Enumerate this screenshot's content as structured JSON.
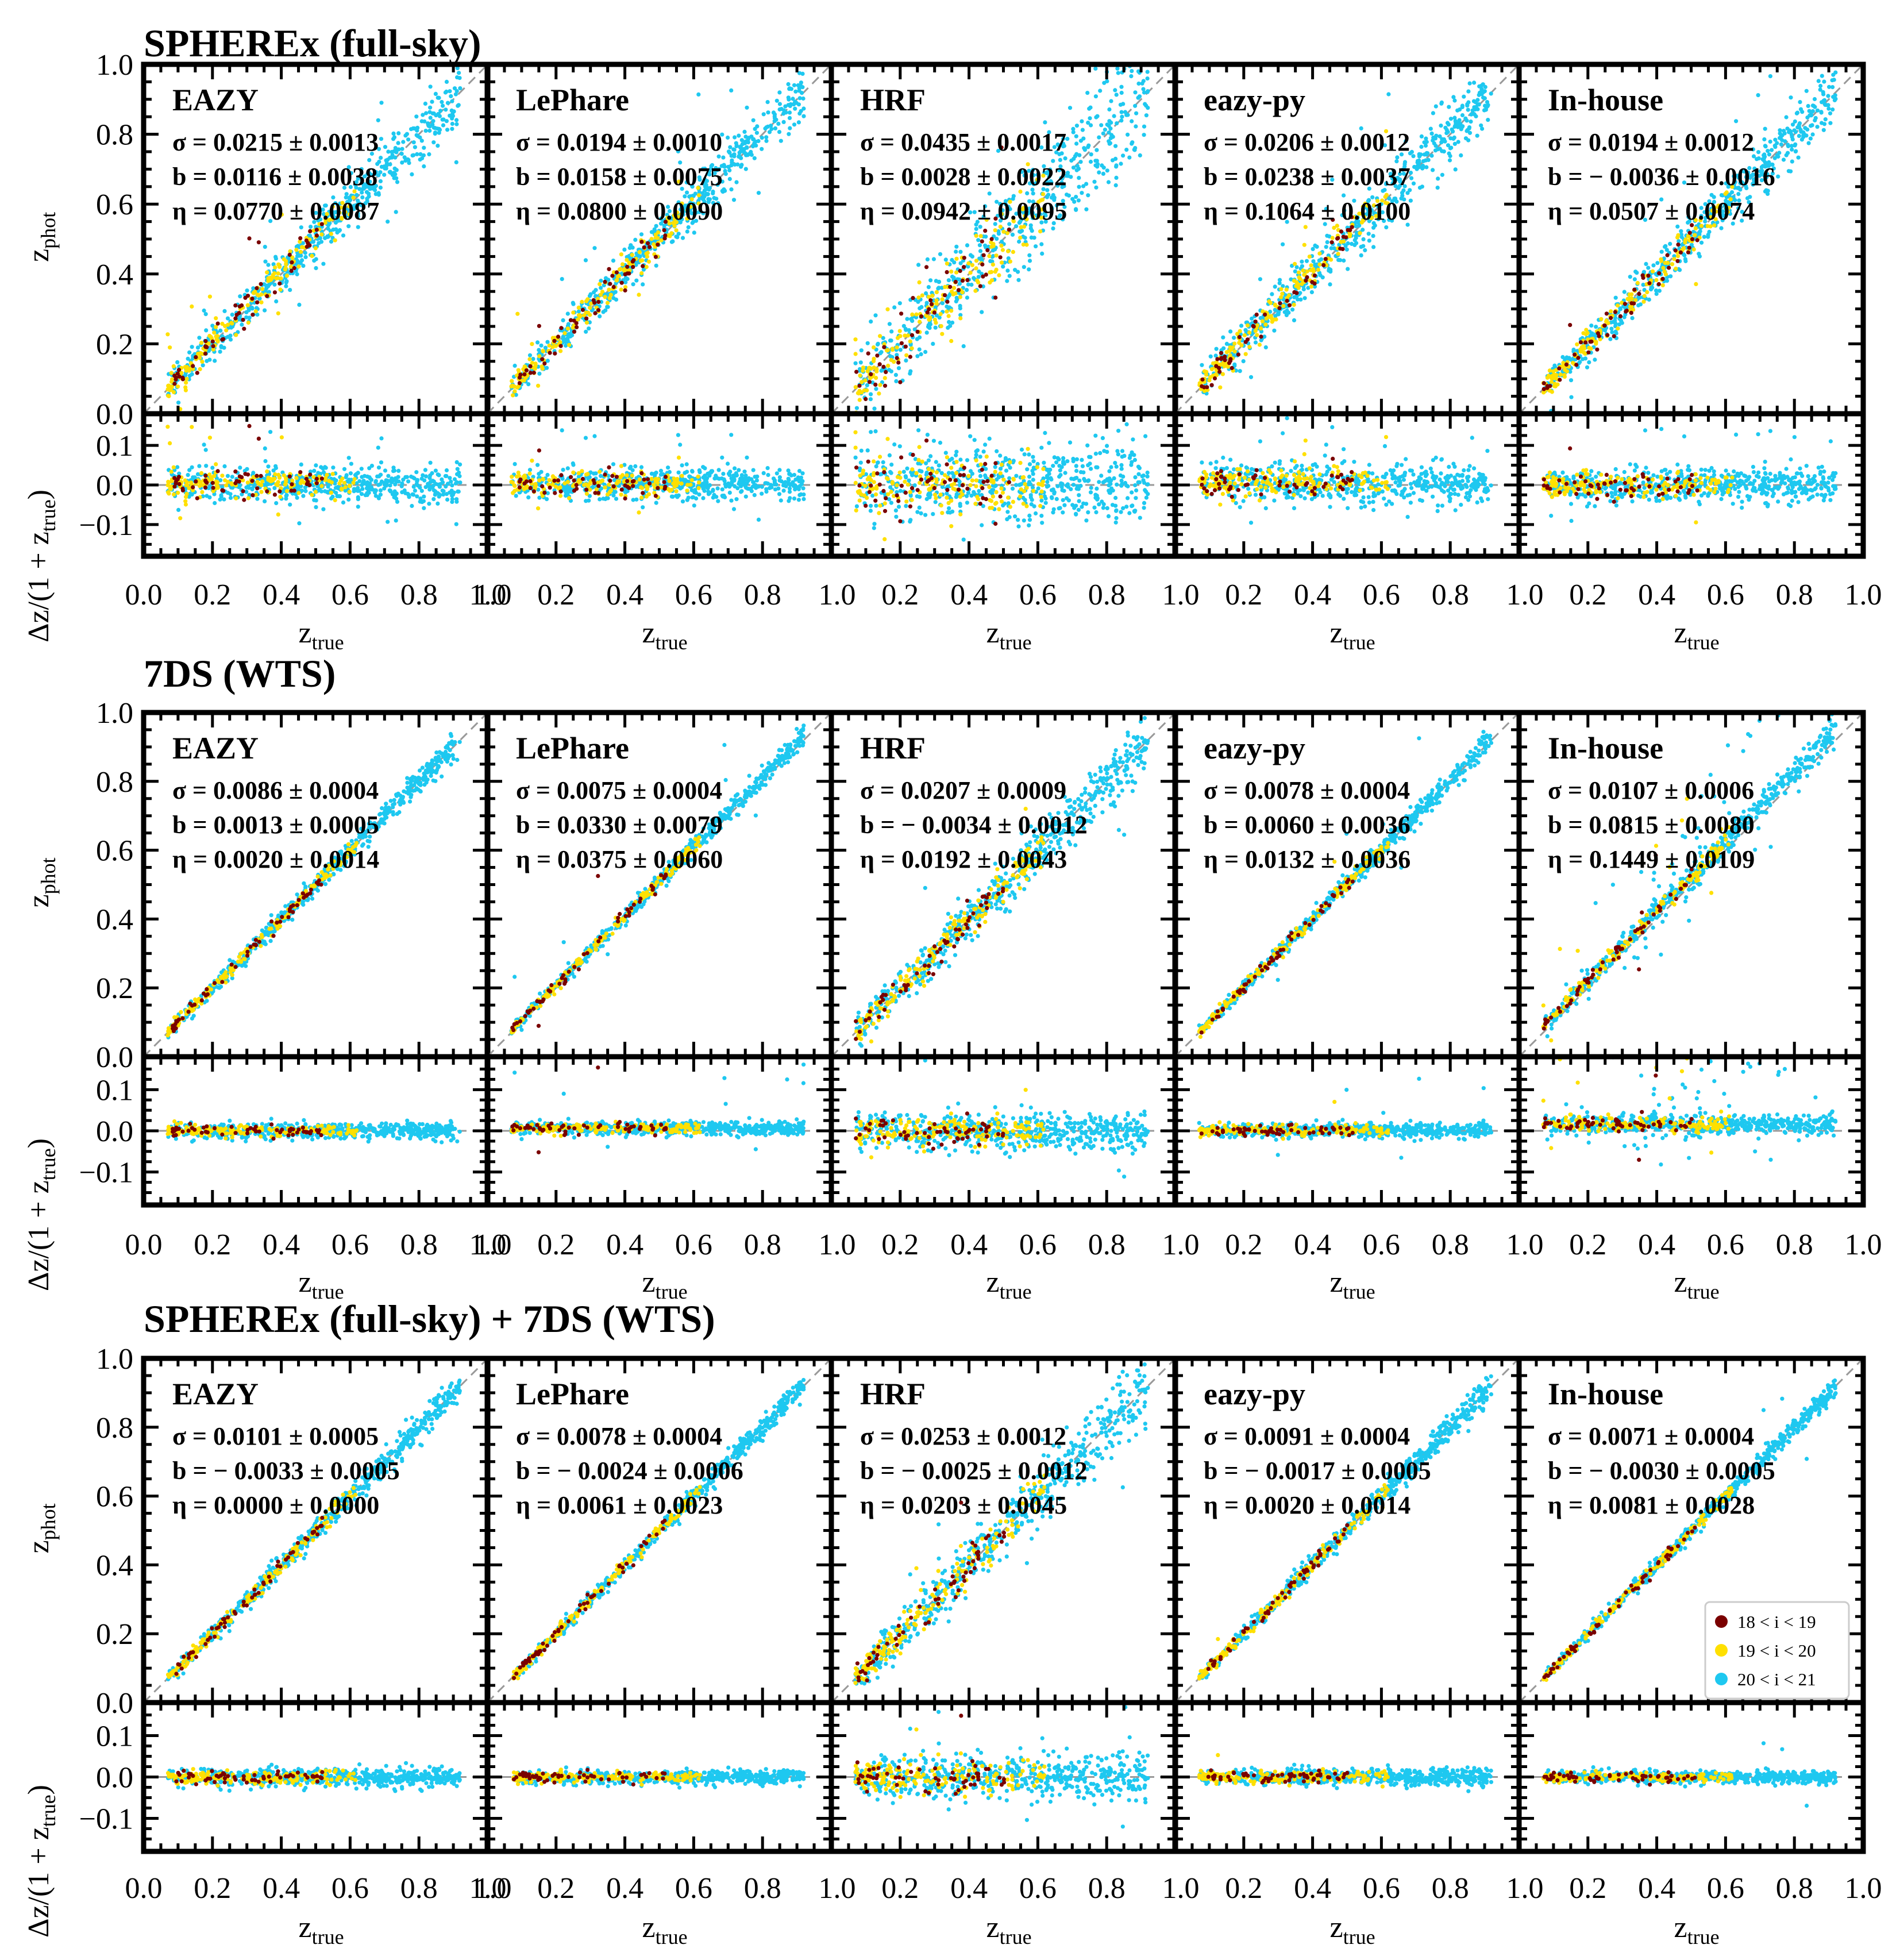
{
  "chart_data": {
    "type": "scatter",
    "description_series": [
      {
        "name": "18 < i < 19",
        "color": "#7a0000"
      },
      {
        "name": "19 < i < 20",
        "color": "#ffe000"
      },
      {
        "name": "20 < i < 21",
        "color": "#1ec8f0"
      }
    ],
    "legend": {
      "entries": [
        "18 < i < 19",
        "19 < i < 20",
        "20 < i < 21"
      ],
      "location": "lower-right of bottom-row In-house panel"
    },
    "axes": {
      "xlabel_main": "z",
      "xlabel_sub": "true",
      "ylabel_top_main": "z",
      "ylabel_top_sub": "phot",
      "ylabel_bottom_prefix": "Δz/(1 + z",
      "ylabel_bottom_sub": "true",
      "ylabel_bottom_suffix": ")",
      "x_range": [
        0.0,
        1.0
      ],
      "y_top_range": [
        0.0,
        1.0
      ],
      "y_bottom_range": [
        -0.18,
        0.18
      ],
      "x_ticks_first": [
        "0.0",
        "0.2",
        "0.4",
        "0.6",
        "0.8",
        "1.0"
      ],
      "x_ticks_other": [
        "1.0",
        "0.2",
        "0.4",
        "0.6",
        "0.8"
      ],
      "x_ticks_last": [
        "1.0",
        "0.2",
        "0.4",
        "0.6",
        "0.8",
        "1.0"
      ],
      "y_top_ticks": [
        "1.0",
        "0.8",
        "0.6",
        "0.4",
        "0.2",
        "0.0"
      ],
      "y_bottom_ticks": [
        "0.1",
        "0.0",
        "−0.1"
      ],
      "y_bottom_ticks_row1": [
        "0.1",
        "0.0",
        "−0.1"
      ]
    },
    "groups": [
      {
        "title": "SPHEREx (full-sky)",
        "panels": [
          {
            "method": "EAZY",
            "sigma": "σ = 0.0215 ± 0.0013",
            "bias": "b = 0.0116 ± 0.0038",
            "eta": "η = 0.0770 ± 0.0087",
            "sigma_value": 0.0215,
            "bias_value": 0.0116,
            "eta_value": 0.077
          },
          {
            "method": "LePhare",
            "sigma": "σ = 0.0194 ± 0.0010",
            "bias": "b = 0.0158 ± 0.0075",
            "eta": "η = 0.0800 ± 0.0090",
            "sigma_value": 0.0194,
            "bias_value": 0.0158,
            "eta_value": 0.08
          },
          {
            "method": "HRF",
            "sigma": "σ = 0.0435 ± 0.0017",
            "bias": "b = 0.0028 ± 0.0022",
            "eta": "η = 0.0942 ± 0.0095",
            "sigma_value": 0.0435,
            "bias_value": 0.0028,
            "eta_value": 0.0942
          },
          {
            "method": "eazy-py",
            "sigma": "σ = 0.0206 ± 0.0012",
            "bias": "b = 0.0238 ± 0.0037",
            "eta": "η = 0.1064 ± 0.0100",
            "sigma_value": 0.0206,
            "bias_value": 0.0238,
            "eta_value": 0.1064
          },
          {
            "method": "In-house",
            "sigma": "σ = 0.0194 ± 0.0012",
            "bias": "b = − 0.0036 ± 0.0016",
            "eta": "η = 0.0507 ± 0.0074",
            "sigma_value": 0.0194,
            "bias_value": -0.0036,
            "eta_value": 0.0507
          }
        ]
      },
      {
        "title": "7DS (WTS)",
        "panels": [
          {
            "method": "EAZY",
            "sigma": "σ = 0.0086 ± 0.0004",
            "bias": "b = 0.0013 ± 0.0005",
            "eta": "η = 0.0020 ± 0.0014",
            "sigma_value": 0.0086,
            "bias_value": 0.0013,
            "eta_value": 0.002
          },
          {
            "method": "LePhare",
            "sigma": "σ = 0.0075 ± 0.0004",
            "bias": "b = 0.0330 ± 0.0079",
            "eta": "η = 0.0375 ± 0.0060",
            "sigma_value": 0.0075,
            "bias_value": 0.033,
            "eta_value": 0.0375
          },
          {
            "method": "HRF",
            "sigma": "σ = 0.0207 ± 0.0009",
            "bias": "b = − 0.0034 ± 0.0012",
            "eta": "η = 0.0192 ± 0.0043",
            "sigma_value": 0.0207,
            "bias_value": -0.0034,
            "eta_value": 0.0192
          },
          {
            "method": "eazy-py",
            "sigma": "σ = 0.0078 ± 0.0004",
            "bias": "b = 0.0060 ± 0.0036",
            "eta": "η = 0.0132 ± 0.0036",
            "sigma_value": 0.0078,
            "bias_value": 0.006,
            "eta_value": 0.0132
          },
          {
            "method": "In-house",
            "sigma": "σ = 0.0107 ± 0.0006",
            "bias": "b = 0.0815 ± 0.0080",
            "eta": "η = 0.1449 ± 0.0109",
            "sigma_value": 0.0107,
            "bias_value": 0.0815,
            "eta_value": 0.1449
          }
        ]
      },
      {
        "title": "SPHEREx (full-sky) + 7DS (WTS)",
        "panels": [
          {
            "method": "EAZY",
            "sigma": "σ = 0.0101 ± 0.0005",
            "bias": "b = − 0.0033 ± 0.0005",
            "eta": "η = 0.0000 ± 0.0000",
            "sigma_value": 0.0101,
            "bias_value": -0.0033,
            "eta_value": 0.0
          },
          {
            "method": "LePhare",
            "sigma": "σ = 0.0078 ± 0.0004",
            "bias": "b = − 0.0024 ± 0.0006",
            "eta": "η = 0.0061 ± 0.0023",
            "sigma_value": 0.0078,
            "bias_value": -0.0024,
            "eta_value": 0.0061
          },
          {
            "method": "HRF",
            "sigma": "σ = 0.0253 ± 0.0012",
            "bias": "b = − 0.0025 ± 0.0012",
            "eta": "η = 0.0203 ± 0.0045",
            "sigma_value": 0.0253,
            "bias_value": -0.0025,
            "eta_value": 0.0203
          },
          {
            "method": "eazy-py",
            "sigma": "σ = 0.0091 ± 0.0004",
            "bias": "b = − 0.0017 ± 0.0005",
            "eta": "η = 0.0020 ± 0.0014",
            "sigma_value": 0.0091,
            "bias_value": -0.0017,
            "eta_value": 0.002
          },
          {
            "method": "In-house",
            "sigma": "σ = 0.0071 ± 0.0004",
            "bias": "b = − 0.0030 ± 0.0005",
            "eta": "η = 0.0081 ± 0.0028",
            "sigma_value": 0.0071,
            "bias_value": -0.003,
            "eta_value": 0.0081
          }
        ]
      }
    ]
  }
}
